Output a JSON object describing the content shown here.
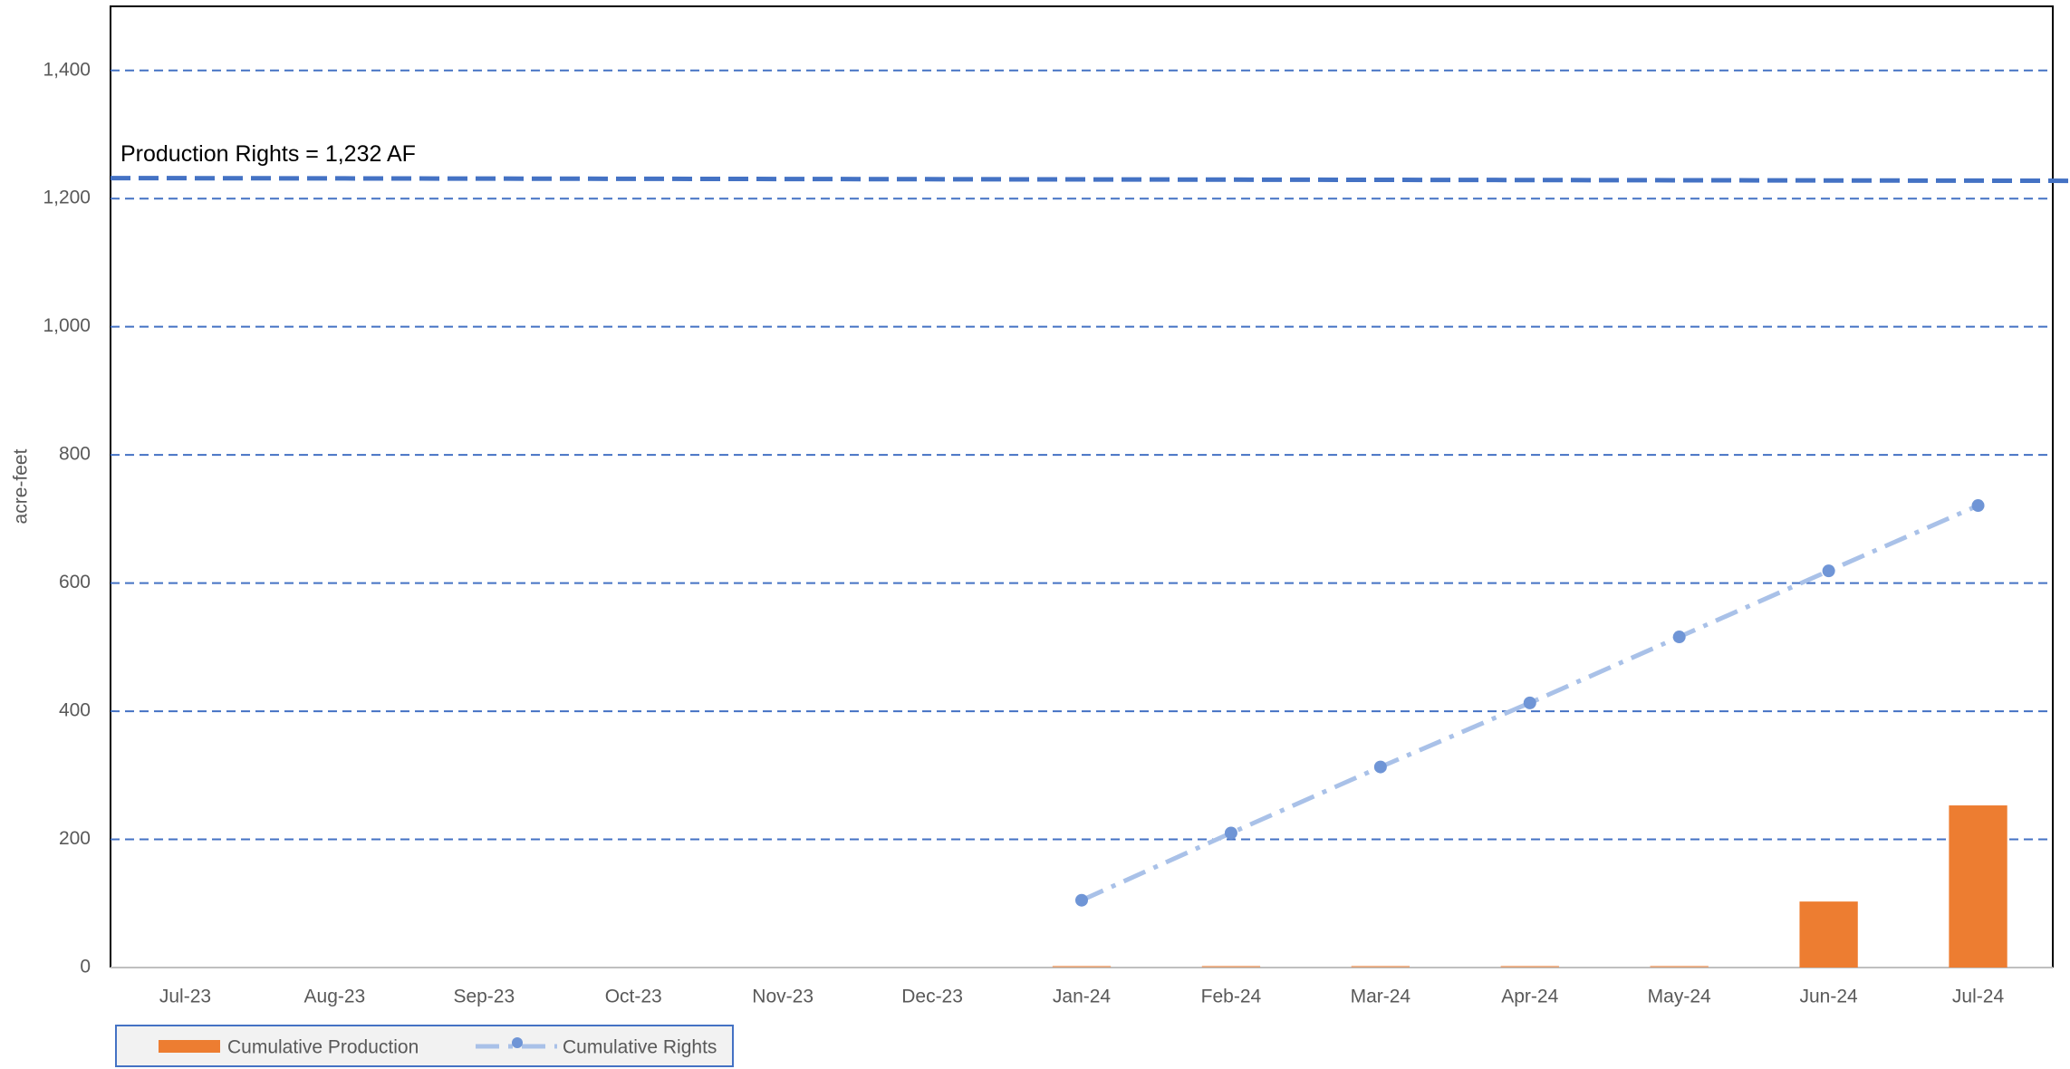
{
  "chart_data": {
    "type": "bar_line",
    "y_label": "acre-feet",
    "categories": [
      "Jul-23",
      "Aug-23",
      "Sep-23",
      "Oct-23",
      "Nov-23",
      "Dec-23",
      "Jan-24",
      "Feb-24",
      "Mar-24",
      "Apr-24",
      "May-24",
      "Jun-24",
      "Jul-24"
    ],
    "series": [
      {
        "name": "Cumulative Production",
        "type": "bar",
        "color": "#ed7d31",
        "values": [
          null,
          null,
          null,
          null,
          null,
          null,
          3,
          3,
          3,
          3,
          3,
          103,
          253
        ]
      },
      {
        "name": "Cumulative Rights",
        "type": "line",
        "color": "#a9c1e8",
        "marker_color": "#6f95d6",
        "values": [
          null,
          null,
          null,
          null,
          null,
          null,
          105,
          210,
          313,
          413,
          516,
          619,
          721
        ]
      }
    ],
    "reference_line": {
      "value": 1232,
      "label": "Production Rights = 1,232 AF",
      "color": "#4472c4"
    },
    "ylim": [
      0,
      1500
    ],
    "yticks": [
      0,
      200,
      400,
      600,
      800,
      {
        "value": 1000,
        "label": "1,000"
      },
      {
        "value": 1200,
        "label": "1,200"
      },
      {
        "value": 1400,
        "label": "1,400"
      }
    ],
    "grid": true,
    "grid_color": "#4472c4",
    "legend": "bottom-left"
  }
}
